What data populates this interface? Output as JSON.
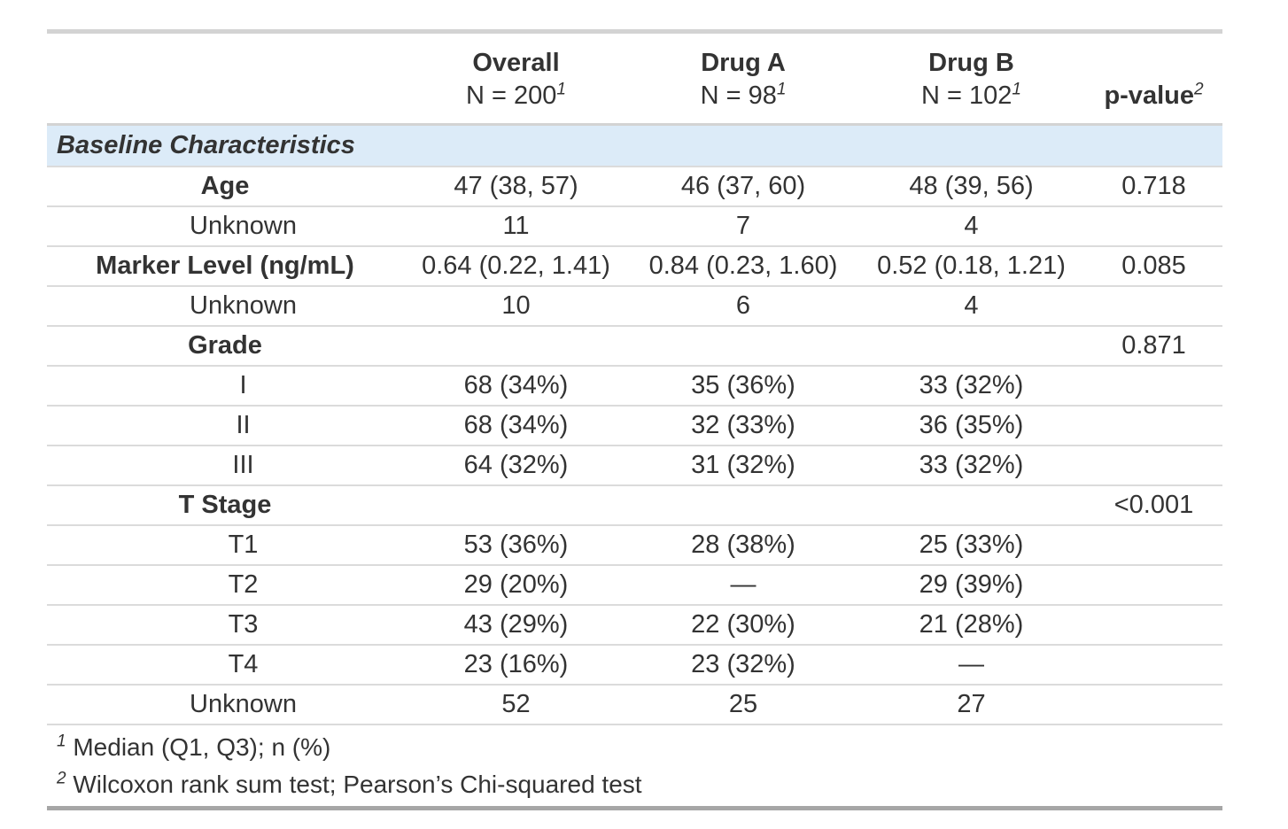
{
  "table": {
    "columns": {
      "stub_label": "",
      "overall": {
        "title": "Overall",
        "subtitle": "N = 200",
        "footnote_marker": "1"
      },
      "drug_a": {
        "title": "Drug A",
        "subtitle": "N = 98",
        "footnote_marker": "1"
      },
      "drug_b": {
        "title": "Drug B",
        "subtitle": "N = 102",
        "footnote_marker": "1"
      },
      "p_value": {
        "title": "p-value",
        "footnote_marker": "2"
      }
    },
    "section_header": "Baseline Characteristics",
    "rows": [
      {
        "label": "Age",
        "style": "group",
        "values": [
          "47 (38, 57)",
          "46 (37, 60)",
          "48 (39, 56)",
          "0.718"
        ]
      },
      {
        "label": "Unknown",
        "style": "level",
        "values": [
          "11",
          "7",
          "4",
          ""
        ]
      },
      {
        "label": "Marker Level (ng/mL)",
        "style": "group",
        "values": [
          "0.64 (0.22, 1.41)",
          "0.84 (0.23, 1.60)",
          "0.52 (0.18, 1.21)",
          "0.085"
        ]
      },
      {
        "label": "Unknown",
        "style": "level",
        "values": [
          "10",
          "6",
          "4",
          ""
        ]
      },
      {
        "label": "Grade",
        "style": "group",
        "values": [
          "",
          "",
          "",
          "0.871"
        ]
      },
      {
        "label": "I",
        "style": "level",
        "values": [
          "68 (34%)",
          "35 (36%)",
          "33 (32%)",
          ""
        ]
      },
      {
        "label": "II",
        "style": "level",
        "values": [
          "68 (34%)",
          "32 (33%)",
          "36 (35%)",
          ""
        ]
      },
      {
        "label": "III",
        "style": "level",
        "values": [
          "64 (32%)",
          "31 (32%)",
          "33 (32%)",
          ""
        ]
      },
      {
        "label": "T Stage",
        "style": "group",
        "values": [
          "",
          "",
          "",
          "<0.001"
        ]
      },
      {
        "label": "T1",
        "style": "level",
        "values": [
          "53 (36%)",
          "28 (38%)",
          "25 (33%)",
          ""
        ]
      },
      {
        "label": "T2",
        "style": "level",
        "values": [
          "29 (20%)",
          "—",
          "29 (39%)",
          ""
        ]
      },
      {
        "label": "T3",
        "style": "level",
        "values": [
          "43 (29%)",
          "22 (30%)",
          "21 (28%)",
          ""
        ]
      },
      {
        "label": "T4",
        "style": "level",
        "values": [
          "23 (16%)",
          "23 (32%)",
          "—",
          ""
        ]
      },
      {
        "label": "Unknown",
        "style": "level",
        "values": [
          "52",
          "25",
          "27",
          ""
        ]
      }
    ],
    "footnotes": [
      {
        "marker": "1",
        "text": "Median (Q1, Q3); n (%)"
      },
      {
        "marker": "2",
        "text": "Wilcoxon rank sum test; Pearson’s Chi-squared test"
      }
    ],
    "colors": {
      "section_band": "#dcebf8",
      "text": "#333333",
      "top_border": "#d3d3d3",
      "bottom_border": "#a6a6a6",
      "row_divider": "#dbdbdb"
    }
  }
}
